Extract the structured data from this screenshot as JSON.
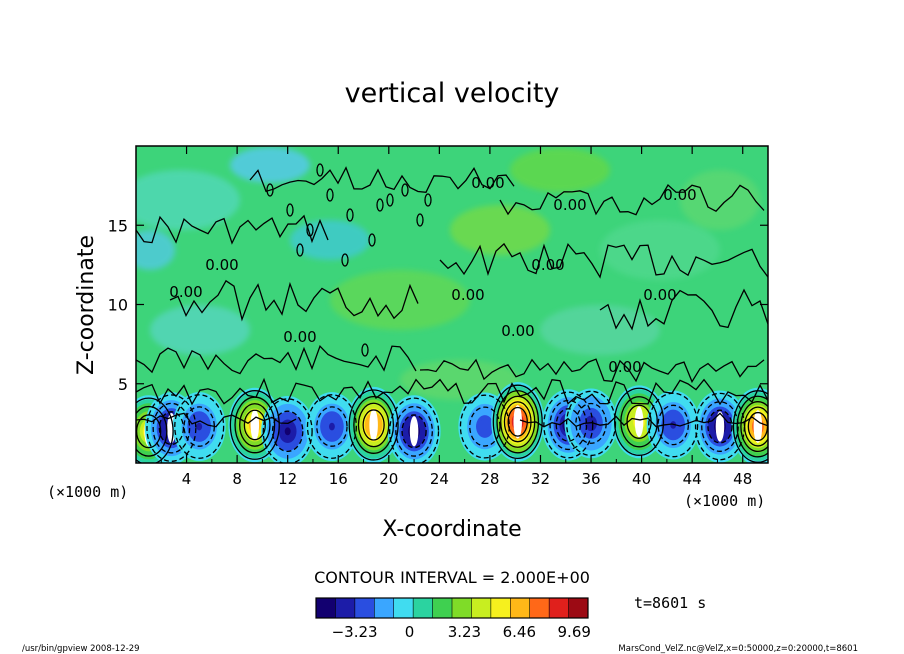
{
  "chart_data": {
    "type": "heatmap",
    "title": "vertical velocity",
    "xlabel": "X-coordinate",
    "ylabel": "Z-coordinate",
    "x_unit": "(×1000 m)",
    "z_unit": "(×1000 m)",
    "xlim": [
      0,
      50
    ],
    "ylim": [
      0,
      20
    ],
    "x_ticks": [
      4,
      8,
      12,
      16,
      20,
      24,
      28,
      32,
      36,
      40,
      44,
      48
    ],
    "y_ticks": [
      5,
      10,
      15
    ],
    "contour_interval_text": "CONTOUR INTERVAL = 2.000E+00",
    "contour_labels": [
      "0.00",
      "0.00",
      "0.00",
      "0.00",
      "0.00",
      "0.00",
      "0.00",
      "0.00",
      "0.00",
      "0.00",
      "0.00"
    ],
    "time_text": "t=8601 s",
    "colorbar": {
      "ticks": [
        -3.23,
        0,
        3.23,
        6.46,
        9.69
      ],
      "tick_labels": [
        "−3.23",
        "0",
        "3.23",
        "6.46",
        "9.69"
      ],
      "range": [
        -5.5,
        10.5
      ],
      "colors": [
        "#120070",
        "#1c1ca8",
        "#2a4ee0",
        "#3aa6ff",
        "#40dcf0",
        "#2bd3a0",
        "#3fd050",
        "#7fdc28",
        "#c8ee20",
        "#f6f01e",
        "#ffb818",
        "#ff6818",
        "#e0201c",
        "#9c0a14"
      ]
    },
    "cells": [
      {
        "x": 1.0,
        "z": 2.0,
        "w": 5.5
      },
      {
        "x": 2.8,
        "z": 2.2,
        "w": -5.5
      },
      {
        "x": 5.0,
        "z": 2.3,
        "w": -3.5
      },
      {
        "x": 9.4,
        "z": 2.4,
        "w": 7.0
      },
      {
        "x": 12.0,
        "z": 2.0,
        "w": -4.5
      },
      {
        "x": 15.5,
        "z": 2.3,
        "w": -3.5
      },
      {
        "x": 18.8,
        "z": 2.4,
        "w": 8.0
      },
      {
        "x": 22.0,
        "z": 2.0,
        "w": -5.5
      },
      {
        "x": 27.6,
        "z": 2.3,
        "w": -3.0
      },
      {
        "x": 30.2,
        "z": 2.6,
        "w": 10.2
      },
      {
        "x": 34.2,
        "z": 2.4,
        "w": -5.0
      },
      {
        "x": 36.0,
        "z": 2.5,
        "w": -4.0
      },
      {
        "x": 39.8,
        "z": 2.6,
        "w": 6.0
      },
      {
        "x": 42.5,
        "z": 2.4,
        "w": -3.5
      },
      {
        "x": 46.2,
        "z": 2.3,
        "w": -5.5
      },
      {
        "x": 49.2,
        "z": 2.3,
        "w": 9.0
      }
    ]
  },
  "footer": {
    "left_text": "/usr/bin/gpview  2008-12-29",
    "right_text": "MarsCond_VelZ.nc@VelZ,x=0:50000,z=0:20000,t=8601"
  }
}
